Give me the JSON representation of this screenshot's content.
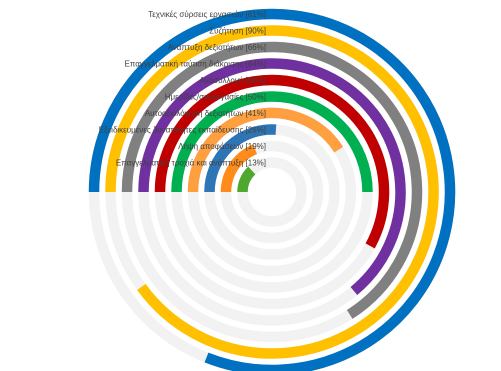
{
  "chart_data": {
    "type": "radial-bar",
    "max_value": 100,
    "start_angle_deg": 180,
    "direction": "clockwise",
    "track_color": "#f2f2f2",
    "categories": [
      "Τεχνικές σύρσεις εργασιών [81%]",
      "Συζήτηση [90%]",
      "Ανάπτυξη δεξιοτήτων [66%]",
      "Επαγγελματική ταύτιση διάκρισης [64%]",
      "Ανασυλλογή [58%]",
      "Ημερίδες/συνεργασίες [50%]",
      "Αυτοαξιολόγηση δεξιοτήτων [41%]",
      "Εξειδικευμένες δυνατότητες εκπαίδευσης [26%]",
      "Λήψη αποφάσεων [19%]",
      "Επαγγελματική τροχιά και ανάπτυξη [13%]"
    ],
    "values": [
      81,
      90,
      66,
      64,
      58,
      50,
      41,
      26,
      19,
      13
    ],
    "colors": [
      "#0070c0",
      "#ffc000",
      "#808080",
      "#7030a0",
      "#c00000",
      "#00b050",
      "#ffa040",
      "#2e75b6",
      "#ff8c1a",
      "#4ea72e"
    ]
  }
}
